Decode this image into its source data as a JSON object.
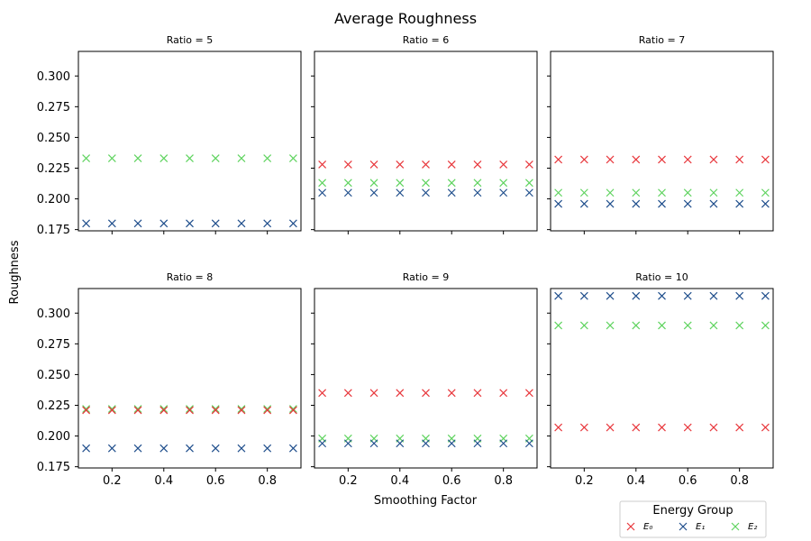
{
  "chart_data": {
    "type": "scatter",
    "title": "Average Roughness",
    "xlabel": "Smoothing Factor",
    "ylabel": "Roughness",
    "xlim": [
      0.07,
      0.93
    ],
    "ylim": [
      0.174,
      0.32
    ],
    "xticks": [
      "0.2",
      "0.4",
      "0.6",
      "0.8"
    ],
    "yticks": [
      "0.175",
      "0.200",
      "0.225",
      "0.250",
      "0.275",
      "0.300"
    ],
    "x": [
      0.1,
      0.2,
      0.3,
      0.4,
      0.5,
      0.6,
      0.7,
      0.8,
      0.9
    ],
    "legend_title": "Energy Group",
    "legend_placement": "bottom-right",
    "colors": {
      "E0": "#e8383d",
      "E1": "#1f4e8c",
      "E2": "#5fd35f"
    },
    "series_names": [
      "E₀",
      "E₁",
      "E₂"
    ],
    "panels": [
      {
        "subtitle": "Ratio = 5",
        "E0": null,
        "E1": 0.18,
        "E2": 0.233
      },
      {
        "subtitle": "Ratio = 6",
        "E0": 0.228,
        "E1": 0.205,
        "E2": 0.213
      },
      {
        "subtitle": "Ratio = 7",
        "E0": 0.232,
        "E1": 0.196,
        "E2": 0.205
      },
      {
        "subtitle": "Ratio = 8",
        "E0": 0.221,
        "E1": 0.19,
        "E2": 0.222
      },
      {
        "subtitle": "Ratio = 9",
        "E0": 0.235,
        "E1": 0.194,
        "E2": 0.198
      },
      {
        "subtitle": "Ratio = 10",
        "E0": 0.207,
        "E1": 0.314,
        "E2": 0.29
      }
    ]
  }
}
